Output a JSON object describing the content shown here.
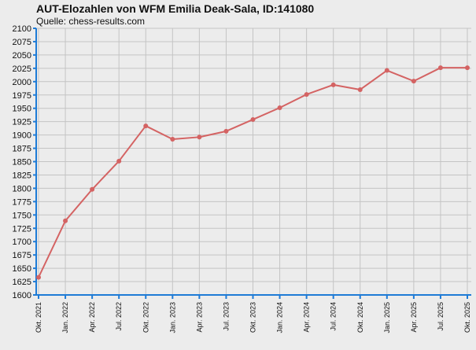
{
  "colors": {
    "background": "#ececec",
    "plot_background": "#ececec",
    "grid": "#c4c4c4",
    "axis": "#1e7bd6",
    "series_line": "#d46363",
    "text": "#111111"
  },
  "chart_data": {
    "type": "line",
    "title": "AUT-Elozahlen von WFM Emilia Deak-Sala, ID:141080",
    "subtitle": "Quelle: chess-results.com",
    "xlabel": "",
    "ylabel": "",
    "x": [
      "Okt. 2021",
      "Jan. 2022",
      "Apr. 2022",
      "Jul. 2022",
      "Okt. 2022",
      "Jan. 2023",
      "Apr. 2023",
      "Jul. 2023",
      "Okt. 2023",
      "Jan. 2024",
      "Apr. 2024",
      "Jul. 2024",
      "Okt. 2024",
      "Jan. 2025",
      "Apr. 2025",
      "Jul. 2025",
      "Okt. 2025"
    ],
    "series": [
      {
        "values": [
          1633,
          1739,
          1798,
          1851,
          1917,
          1892,
          1896,
          1907,
          1929,
          1951,
          1976,
          1994,
          1985,
          2021,
          2001,
          2026,
          2026
        ]
      }
    ],
    "ylim": [
      1600,
      2100
    ],
    "ytick_step": 25,
    "grid": true,
    "legend": "none"
  }
}
